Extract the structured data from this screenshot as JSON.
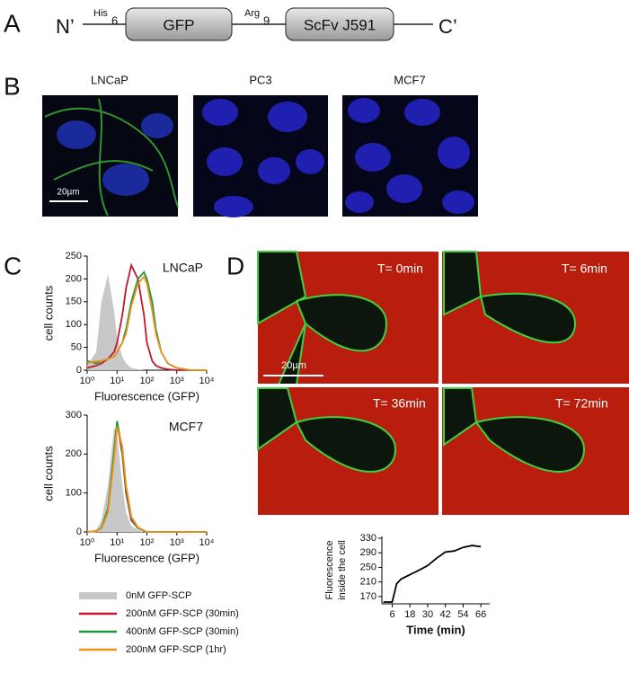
{
  "panels": [
    "A",
    "B",
    "C",
    "D"
  ],
  "construct": {
    "n_term": "N’",
    "c_term": "C’",
    "tag1": "His",
    "tag1_sub": "6",
    "box1": "GFP",
    "tag2": "Arg",
    "tag2_sub": "9",
    "box2": "ScFv J591"
  },
  "microscopy": {
    "labels": [
      "LNCaP",
      "PC3",
      "MCF7"
    ],
    "scale_bar": "20µm"
  },
  "timelapse": {
    "labels": [
      "T= 0min",
      "T= 6min",
      "T= 36min",
      "T= 72min"
    ],
    "scale_bar": "20µm"
  },
  "chart_data": [
    {
      "type": "line",
      "title": "LNCaP",
      "xlabel": "Fluorescence (GFP)",
      "ylabel": "cell counts",
      "xscale": "log",
      "x": [
        1,
        2,
        3,
        5,
        8,
        10,
        15,
        20,
        30,
        50,
        80,
        100,
        150,
        200,
        300,
        500,
        1000,
        3000,
        10000
      ],
      "xlim": [
        1,
        10000
      ],
      "xticks": [
        {
          "value": 1,
          "label": "10⁰"
        },
        {
          "value": 10,
          "label": "10¹"
        },
        {
          "value": 100,
          "label": "10²"
        },
        {
          "value": 1000,
          "label": "10³"
        },
        {
          "value": 10000,
          "label": "10⁴"
        }
      ],
      "ylim": [
        0,
        250
      ],
      "yticks": [
        0,
        50,
        100,
        150,
        200,
        250
      ],
      "series": [
        {
          "name": "0nM GFP-SCP",
          "color": "#c8c8c8",
          "style": "area",
          "values": [
            10,
            40,
            150,
            210,
            130,
            70,
            30,
            15,
            5,
            2,
            0,
            0,
            0,
            0,
            0,
            0,
            0,
            0,
            0
          ]
        },
        {
          "name": "200nM GFP-SCP (30min)",
          "color": "#c0172b",
          "style": "line",
          "values": [
            5,
            10,
            15,
            25,
            40,
            60,
            120,
            180,
            230,
            200,
            120,
            60,
            20,
            10,
            5,
            2,
            0,
            0,
            0
          ]
        },
        {
          "name": "400nM GFP-SCP (30min)",
          "color": "#1e9a3c",
          "style": "line",
          "values": [
            20,
            15,
            20,
            25,
            30,
            40,
            60,
            90,
            150,
            200,
            215,
            200,
            150,
            90,
            40,
            15,
            5,
            0,
            0
          ]
        },
        {
          "name": "200nM GFP-SCP (1hr)",
          "color": "#f0901e",
          "style": "line",
          "values": [
            15,
            20,
            20,
            25,
            30,
            40,
            60,
            80,
            140,
            190,
            205,
            190,
            130,
            80,
            40,
            15,
            5,
            0,
            0
          ]
        }
      ]
    },
    {
      "type": "line",
      "title": "MCF7",
      "xlabel": "Fluorescence (GFP)",
      "ylabel": "cell counts",
      "xscale": "log",
      "x": [
        1,
        2,
        3,
        5,
        8,
        10,
        15,
        20,
        30,
        50,
        80,
        100,
        150,
        200,
        300,
        500,
        1000,
        3000,
        10000
      ],
      "xlim": [
        1,
        10000
      ],
      "xticks": [
        {
          "value": 1,
          "label": "10⁰"
        },
        {
          "value": 10,
          "label": "10¹"
        },
        {
          "value": 100,
          "label": "10²"
        },
        {
          "value": 1000,
          "label": "10³"
        },
        {
          "value": 10000,
          "label": "10⁴"
        }
      ],
      "ylim": [
        0,
        300
      ],
      "yticks": [
        0,
        100,
        200,
        300
      ],
      "series": [
        {
          "color": "#c8c8c8",
          "style": "area",
          "values": [
            0,
            5,
            30,
            120,
            270,
            250,
            120,
            50,
            15,
            5,
            0,
            0,
            0,
            0,
            0,
            0,
            0,
            0,
            0
          ]
        },
        {
          "color": "#c0172b",
          "style": "line",
          "values": [
            0,
            2,
            10,
            60,
            200,
            280,
            200,
            100,
            30,
            10,
            3,
            0,
            0,
            0,
            0,
            0,
            0,
            0,
            0
          ]
        },
        {
          "color": "#1e9a3c",
          "style": "line",
          "values": [
            0,
            2,
            10,
            60,
            210,
            285,
            210,
            110,
            35,
            10,
            3,
            0,
            0,
            0,
            0,
            0,
            0,
            0,
            0
          ]
        },
        {
          "color": "#f0901e",
          "style": "line",
          "values": [
            0,
            2,
            8,
            50,
            190,
            270,
            220,
            120,
            40,
            12,
            4,
            0,
            0,
            0,
            0,
            0,
            0,
            0,
            0
          ]
        }
      ]
    },
    {
      "type": "line",
      "xlabel": "Time (min)",
      "ylabel": [
        "Fluorescence",
        "inside the cell"
      ],
      "x": [
        0,
        6,
        9,
        12,
        18,
        24,
        30,
        36,
        42,
        48,
        54,
        60,
        66
      ],
      "xlim": [
        -1,
        72
      ],
      "xticks": [
        6,
        18,
        30,
        42,
        54,
        66
      ],
      "ylim": [
        150,
        335
      ],
      "yticks": [
        170,
        210,
        250,
        290,
        330
      ],
      "series": [
        {
          "color": "#000000",
          "style": "line",
          "values": [
            155,
            155,
            205,
            218,
            230,
            242,
            255,
            275,
            292,
            295,
            305,
            310,
            307
          ]
        }
      ]
    }
  ]
}
